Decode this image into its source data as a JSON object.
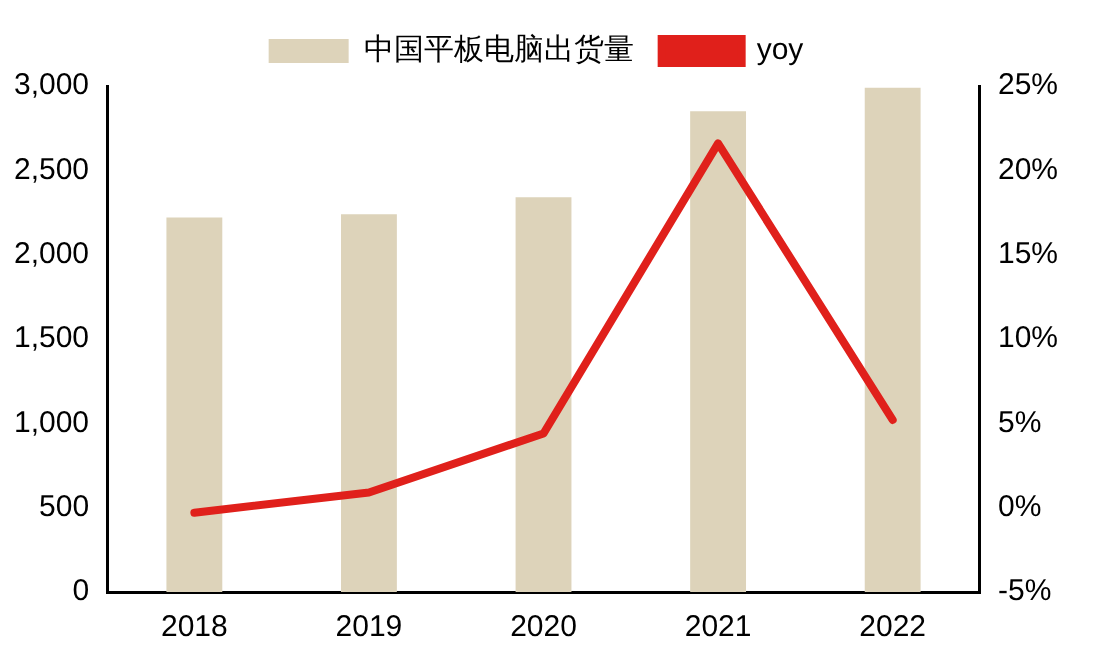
{
  "chart_data": {
    "type": "bar",
    "categories": [
      "2018",
      "2019",
      "2020",
      "2021",
      "2022"
    ],
    "series": [
      {
        "name": "中国平板电脑出货量",
        "color": "#ddd3ba",
        "values": [
          2220,
          2240,
          2340,
          2850,
          2990
        ]
      },
      {
        "name": "yoy",
        "type": "line",
        "axis": "y2",
        "color": "#e0201b",
        "values": [
          -0.3,
          0.9,
          4.4,
          21.6,
          5.2
        ]
      }
    ],
    "ylim": [
      0,
      3000
    ],
    "yticks": [
      {
        "value": 0,
        "label": "0"
      },
      {
        "value": 500,
        "label": "500"
      },
      {
        "value": 1000,
        "label": "1,000"
      },
      {
        "value": 1500,
        "label": "1,500"
      },
      {
        "value": 2000,
        "label": "2,000"
      },
      {
        "value": 2500,
        "label": "2,500"
      },
      {
        "value": 3000,
        "label": "3,000"
      }
    ],
    "y2lim": [
      -5,
      25
    ],
    "y2ticks": [
      {
        "value": -5,
        "label": "-5%"
      },
      {
        "value": 0,
        "label": "0%"
      },
      {
        "value": 5,
        "label": "5%"
      },
      {
        "value": 10,
        "label": "10%"
      },
      {
        "value": 15,
        "label": "15%"
      },
      {
        "value": 20,
        "label": "20%"
      },
      {
        "value": 25,
        "label": "25%"
      }
    ],
    "grid": false,
    "legend": "top",
    "marker": "none",
    "line_style": "solid"
  }
}
